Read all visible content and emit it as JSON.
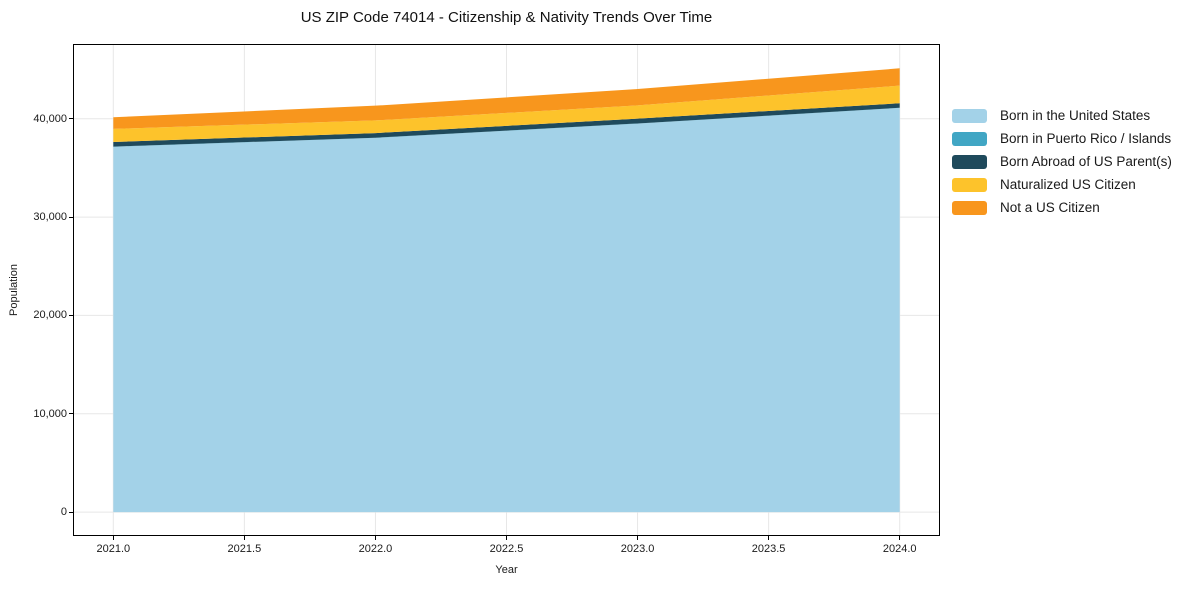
{
  "chart_data": {
    "type": "area",
    "stacked": true,
    "title": "US ZIP Code 74014 - Citizenship & Nativity Trends Over Time",
    "xlabel": "Year",
    "ylabel": "Population",
    "x": [
      2021,
      2022,
      2023,
      2024
    ],
    "series": [
      {
        "name": "Born in the United States",
        "color": "#a3d2e8",
        "values": [
          37150,
          38050,
          39500,
          41100
        ]
      },
      {
        "name": "Born in Puerto Rico / Islands",
        "color": "#41a6c4",
        "values": [
          20,
          20,
          20,
          20
        ]
      },
      {
        "name": "Born Abroad of US Parent(s)",
        "color": "#1f4a5c",
        "values": [
          470,
          470,
          490,
          450
        ]
      },
      {
        "name": "Naturalized US Citizen",
        "color": "#fdc32b",
        "values": [
          1330,
          1290,
          1350,
          1800
        ]
      },
      {
        "name": "Not a US Citizen",
        "color": "#f8961d",
        "values": [
          1180,
          1500,
          1660,
          1760
        ]
      }
    ],
    "totals": [
      40150,
      41330,
      43020,
      45130
    ],
    "xlim": [
      2020.85,
      2024.15
    ],
    "ylim": [
      -2330,
      47500
    ],
    "x_ticks": [
      {
        "v": 2021.0,
        "label": "2021.0"
      },
      {
        "v": 2021.5,
        "label": "2021.5"
      },
      {
        "v": 2022.0,
        "label": "2022.0"
      },
      {
        "v": 2022.5,
        "label": "2022.5"
      },
      {
        "v": 2023.0,
        "label": "2023.0"
      },
      {
        "v": 2023.5,
        "label": "2023.5"
      },
      {
        "v": 2024.0,
        "label": "2024.0"
      }
    ],
    "y_ticks": [
      {
        "v": 0,
        "label": "0"
      },
      {
        "v": 10000,
        "label": "10,000"
      },
      {
        "v": 20000,
        "label": "20,000"
      },
      {
        "v": 30000,
        "label": "30,000"
      },
      {
        "v": 40000,
        "label": "40,000"
      }
    ],
    "grid": true,
    "legend_position": "right"
  },
  "colors": {
    "grid": "#e7e7e7",
    "spine": "#000000",
    "text": "#1a1a1a",
    "background": "#ffffff"
  }
}
